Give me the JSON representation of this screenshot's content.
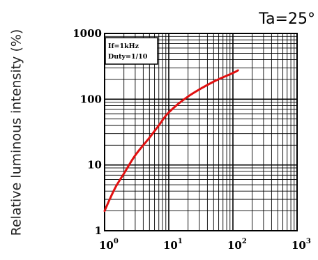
{
  "chart_data": {
    "type": "line",
    "title": "",
    "condition_label": "Ta=25°",
    "ylabel": "Relative luminous intensity (%)",
    "xlabel": "",
    "x_scale": "log",
    "y_scale": "log",
    "xlim": [
      1,
      1000
    ],
    "ylim": [
      1,
      1000
    ],
    "x_ticks": [
      {
        "base": "10",
        "exp": "0",
        "value": 1
      },
      {
        "base": "10",
        "exp": "1",
        "value": 10
      },
      {
        "base": "10",
        "exp": "2",
        "value": 100
      },
      {
        "base": "10",
        "exp": "3",
        "value": 1000
      }
    ],
    "y_ticks": [
      {
        "label": "1",
        "value": 1
      },
      {
        "label": "10",
        "value": 10
      },
      {
        "label": "100",
        "value": 100
      },
      {
        "label": "1000",
        "value": 1000
      }
    ],
    "grid": true,
    "annotation_lines": [
      "If=1kHz",
      "Duty=1/10"
    ],
    "series": [
      {
        "color": "#e01010",
        "points": [
          [
            1.0,
            2.0
          ],
          [
            1.2,
            3.0
          ],
          [
            1.5,
            4.7
          ],
          [
            2.0,
            7.4
          ],
          [
            3.0,
            14
          ],
          [
            5.0,
            26
          ],
          [
            7.0,
            40
          ],
          [
            10,
            63
          ],
          [
            20,
            110
          ],
          [
            50,
            185
          ],
          [
            100,
            250
          ],
          [
            120,
            275
          ]
        ]
      }
    ]
  }
}
